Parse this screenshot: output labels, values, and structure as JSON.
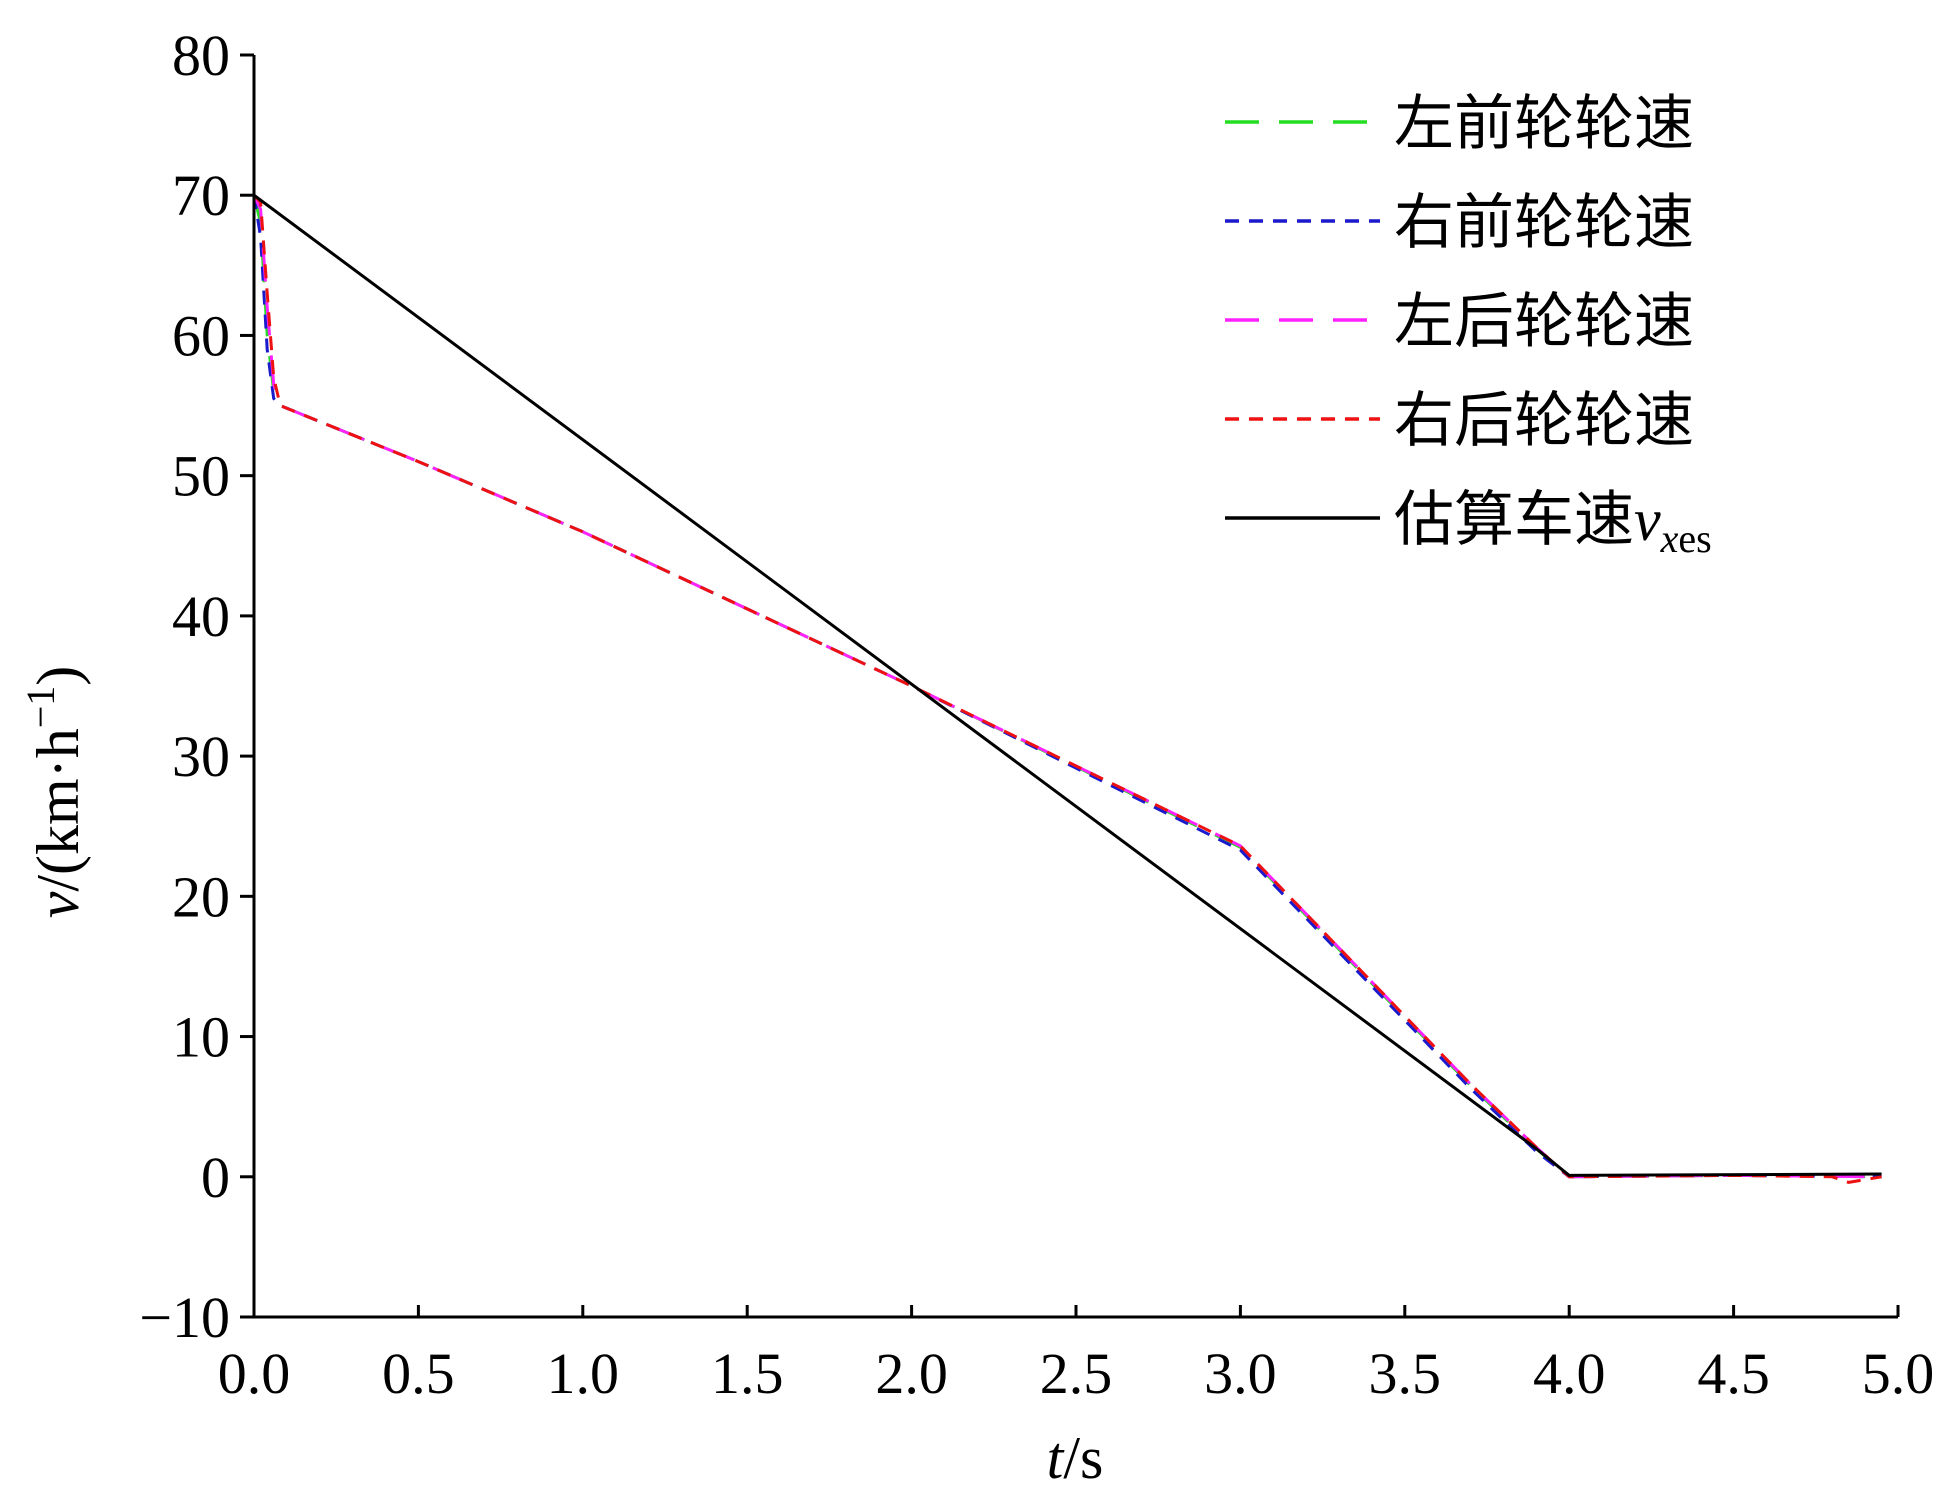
{
  "chart_data": {
    "type": "line",
    "xlabel": {
      "italic": "t",
      "rest": "/s"
    },
    "ylabel": {
      "italic": "v",
      "rest": "/(km·h",
      "sup": "−1",
      "close": ")"
    },
    "xlim": [
      0,
      5
    ],
    "ylim": [
      -10,
      80
    ],
    "xticks": [
      "0.0",
      "0.5",
      "1.0",
      "1.5",
      "2.0",
      "2.5",
      "3.0",
      "3.5",
      "4.0",
      "4.5",
      "5.0"
    ],
    "yticks": [
      "80",
      "70",
      "60",
      "50",
      "40",
      "30",
      "20",
      "10",
      "0",
      "−10"
    ],
    "grid": false,
    "legend_position": "top-right",
    "series": [
      {
        "name": "左前轮轮速",
        "color": "#22dd22",
        "dash": "long",
        "x": [
          0,
          0.02,
          0.04,
          0.06,
          0.08,
          0.5,
          1.0,
          2.0,
          3.0,
          3.7,
          3.9,
          4.0,
          4.5,
          4.95
        ],
        "y": [
          70,
          68,
          60,
          56,
          55,
          51,
          46,
          35,
          23.5,
          6.5,
          2.0,
          0,
          0.1,
          0
        ]
      },
      {
        "name": "右前轮轮速",
        "color": "#1a1acc",
        "dash": "short",
        "x": [
          0,
          0.02,
          0.04,
          0.06,
          0.08,
          0.5,
          1.0,
          2.0,
          3.0,
          3.7,
          3.9,
          4.0,
          4.5,
          4.95
        ],
        "y": [
          70,
          67,
          59,
          55.5,
          55,
          51,
          46,
          35,
          23.3,
          6.3,
          1.8,
          0,
          0.1,
          0
        ]
      },
      {
        "name": "左后轮轮速",
        "color": "#ff22ff",
        "dash": "long",
        "x": [
          0,
          0.02,
          0.04,
          0.06,
          0.08,
          0.5,
          1.0,
          2.0,
          3.0,
          3.7,
          3.9,
          4.0,
          4.5,
          4.95
        ],
        "y": [
          70,
          69,
          62,
          56.5,
          55,
          51,
          46,
          35,
          23.6,
          6.6,
          2.1,
          0,
          0.1,
          0
        ]
      },
      {
        "name": "右后轮轮速",
        "color": "#ee1111",
        "dash": "short",
        "x": [
          0,
          0.02,
          0.04,
          0.06,
          0.08,
          0.5,
          1.0,
          2.0,
          3.0,
          3.7,
          3.9,
          4.0,
          4.5,
          4.8,
          4.85,
          4.95
        ],
        "y": [
          70,
          69.5,
          63,
          57,
          55,
          51,
          46,
          35,
          23.6,
          6.6,
          2.1,
          0,
          0.1,
          0,
          -0.4,
          0
        ]
      },
      {
        "name": "估算车速",
        "name_sub": "xes",
        "name_var": "v",
        "color": "#000000",
        "dash": "solid",
        "x": [
          0,
          3.9,
          4.0,
          4.95
        ],
        "y": [
          70,
          2,
          0.1,
          0.2
        ]
      }
    ]
  }
}
